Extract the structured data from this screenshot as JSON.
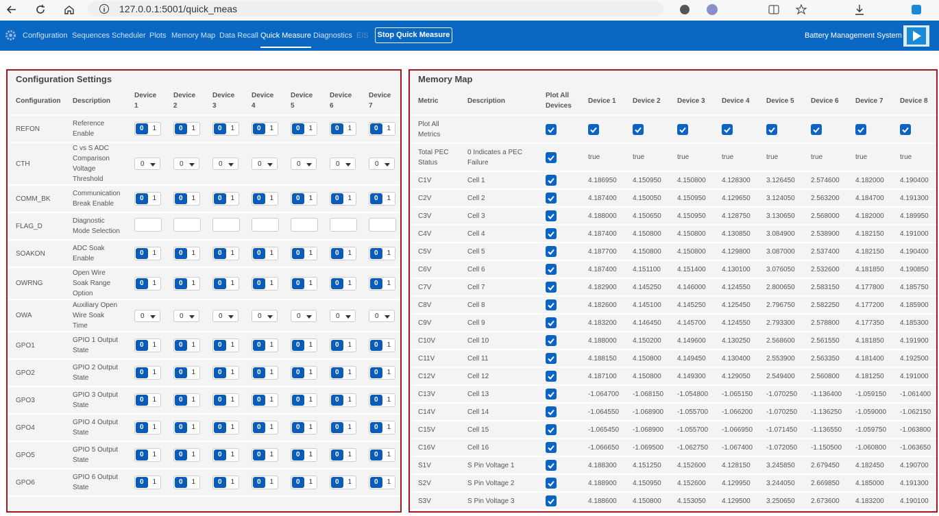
{
  "browser": {
    "url": "127.0.0.1:5001/quick_meas"
  },
  "nav": {
    "items": [
      "Configuration",
      "Sequences",
      "Scheduler",
      "Plots",
      "Memory Map",
      "Data Recall",
      "Quick Measure",
      "Diagnostics",
      "EIS"
    ],
    "button": "Stop Quick Measure",
    "app_name": "Battery Management System"
  },
  "config": {
    "title": "Configuration Settings",
    "headers": [
      "Configuration",
      "Description",
      "Device 1",
      "Device 2",
      "Device 3",
      "Device 4",
      "Device 5",
      "Device 6",
      "Device 7"
    ],
    "toggle": [
      "0",
      "1"
    ],
    "select_value": "0",
    "rows": [
      {
        "name": "REFON",
        "description": "Reference Enable",
        "control": "toggle"
      },
      {
        "name": "CTH",
        "description": "C vs S ADC Comparison Voltage Threshold",
        "control": "select"
      },
      {
        "name": "COMM_BK",
        "description": "Communication Break Enable",
        "control": "toggle"
      },
      {
        "name": "FLAG_D",
        "description": "Diagnostic Mode Selection",
        "control": "input"
      },
      {
        "name": "SOAKON",
        "description": "ADC Soak Enable",
        "control": "toggle"
      },
      {
        "name": "OWRNG",
        "description": "Open Wire Soak Range Option",
        "control": "toggle"
      },
      {
        "name": "OWA",
        "description": "Auxiliary Open Wire Soak Time",
        "control": "select"
      },
      {
        "name": "GPO1",
        "description": "GPIO 1 Output State",
        "control": "toggle"
      },
      {
        "name": "GPO2",
        "description": "GPIO 2 Output State",
        "control": "toggle"
      },
      {
        "name": "GPO3",
        "description": "GPIO 3 Output State",
        "control": "toggle"
      },
      {
        "name": "GPO4",
        "description": "GPIO 4 Output State",
        "control": "toggle"
      },
      {
        "name": "GPO5",
        "description": "GPIO 5 Output State",
        "control": "toggle"
      },
      {
        "name": "GPO6",
        "description": "GPIO 6 Output State",
        "control": "toggle"
      }
    ]
  },
  "memory": {
    "title": "Memory Map",
    "headers": [
      "Metric",
      "Description",
      "Plot All Devices",
      "Device 1",
      "Device 2",
      "Device 3",
      "Device 4",
      "Device 5",
      "Device 6",
      "Device 7",
      "Device 8"
    ],
    "plot_all_row": "Plot All Metrics",
    "rows": [
      {
        "metric": "Total PEC Status",
        "description": "0 Indicates a PEC Failure",
        "values": [
          "true",
          "true",
          "true",
          "true",
          "true",
          "true",
          "true",
          "true"
        ]
      },
      {
        "metric": "C1V",
        "description": "Cell 1",
        "values": [
          "4.186950",
          "4.150950",
          "4.150800",
          "4.128300",
          "3.126450",
          "2.574600",
          "4.182000",
          "4.190400"
        ]
      },
      {
        "metric": "C2V",
        "description": "Cell 2",
        "values": [
          "4.187400",
          "4.150050",
          "4.150950",
          "4.129650",
          "3.124050",
          "2.563200",
          "4.184700",
          "4.191300"
        ]
      },
      {
        "metric": "C3V",
        "description": "Cell 3",
        "values": [
          "4.188000",
          "4.150650",
          "4.150950",
          "4.128750",
          "3.130650",
          "2.568000",
          "4.182000",
          "4.189950"
        ]
      },
      {
        "metric": "C4V",
        "description": "Cell 4",
        "values": [
          "4.187400",
          "4.150800",
          "4.150800",
          "4.130850",
          "3.084900",
          "2.538900",
          "4.182150",
          "4.191000"
        ]
      },
      {
        "metric": "C5V",
        "description": "Cell 5",
        "values": [
          "4.187700",
          "4.150800",
          "4.150800",
          "4.129800",
          "3.087000",
          "2.537400",
          "4.182150",
          "4.190400"
        ]
      },
      {
        "metric": "C6V",
        "description": "Cell 6",
        "values": [
          "4.187400",
          "4.151100",
          "4.151400",
          "4.130100",
          "3.076050",
          "2.532600",
          "4.181850",
          "4.190850"
        ]
      },
      {
        "metric": "C7V",
        "description": "Cell 7",
        "values": [
          "4.182900",
          "4.145250",
          "4.146000",
          "4.124550",
          "2.800650",
          "2.583150",
          "4.177800",
          "4.185750"
        ]
      },
      {
        "metric": "C8V",
        "description": "Cell 8",
        "values": [
          "4.182600",
          "4.145100",
          "4.145250",
          "4.125450",
          "2.796750",
          "2.582250",
          "4.177200",
          "4.185900"
        ]
      },
      {
        "metric": "C9V",
        "description": "Cell 9",
        "values": [
          "4.183200",
          "4.146450",
          "4.145700",
          "4.124550",
          "2.793300",
          "2.578800",
          "4.177350",
          "4.185300"
        ]
      },
      {
        "metric": "C10V",
        "description": "Cell 10",
        "values": [
          "4.188000",
          "4.150200",
          "4.149600",
          "4.130250",
          "2.568600",
          "2.561550",
          "4.181850",
          "4.191900"
        ]
      },
      {
        "metric": "C11V",
        "description": "Cell 11",
        "values": [
          "4.188150",
          "4.150800",
          "4.149450",
          "4.130400",
          "2.553900",
          "2.563350",
          "4.181400",
          "4.192500"
        ]
      },
      {
        "metric": "C12V",
        "description": "Cell 12",
        "values": [
          "4.187100",
          "4.150800",
          "4.149300",
          "4.129050",
          "2.549400",
          "2.560800",
          "4.181250",
          "4.191000"
        ]
      },
      {
        "metric": "C13V",
        "description": "Cell 13",
        "values": [
          "-1.064700",
          "-1.068150",
          "-1.054800",
          "-1.065150",
          "-1.070250",
          "-1.136400",
          "-1.059150",
          "-1.061400"
        ]
      },
      {
        "metric": "C14V",
        "description": "Cell 14",
        "values": [
          "-1.064550",
          "-1.068900",
          "-1.055700",
          "-1.066200",
          "-1.070250",
          "-1.136250",
          "-1.059000",
          "-1.062150"
        ]
      },
      {
        "metric": "C15V",
        "description": "Cell 15",
        "values": [
          "-1.065450",
          "-1.068900",
          "-1.055700",
          "-1.066950",
          "-1.071450",
          "-1.136550",
          "-1.059750",
          "-1.063800"
        ]
      },
      {
        "metric": "C16V",
        "description": "Cell 16",
        "values": [
          "-1.066650",
          "-1.069500",
          "-1.062750",
          "-1.067400",
          "-1.072050",
          "-1.150500",
          "-1.060800",
          "-1.063650"
        ]
      },
      {
        "metric": "S1V",
        "description": "S Pin Voltage 1",
        "values": [
          "4.188300",
          "4.151250",
          "4.152600",
          "4.128150",
          "3.245850",
          "2.679450",
          "4.182450",
          "4.190700"
        ]
      },
      {
        "metric": "S2V",
        "description": "S Pin Voltage 2",
        "values": [
          "4.188900",
          "4.150950",
          "4.152600",
          "4.129950",
          "3.244050",
          "2.669850",
          "4.185000",
          "4.191300"
        ]
      },
      {
        "metric": "S3V",
        "description": "S Pin Voltage 3",
        "values": [
          "4.188600",
          "4.150800",
          "4.153050",
          "4.129500",
          "3.250650",
          "2.673600",
          "4.183200",
          "4.190100"
        ]
      }
    ]
  }
}
